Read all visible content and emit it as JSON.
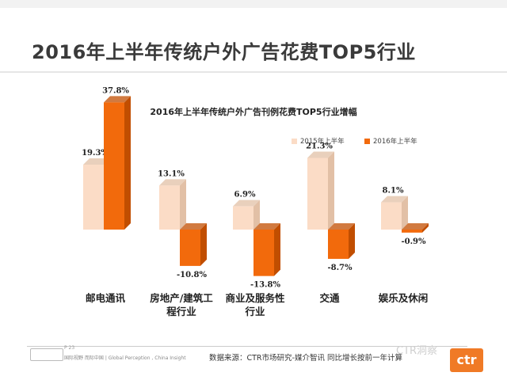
{
  "page": {
    "title": "2016年上半年传统户外广告花费TOP5行业"
  },
  "chart_data": {
    "type": "bar",
    "title": "2016年上半年传统户外广告刊例花费TOP5行业增幅",
    "categories": [
      "邮电通讯",
      "房地产/建筑工程行业",
      "商业及服务性行业",
      "交通",
      "娱乐及休闲"
    ],
    "category_lines": [
      [
        "邮电通讯"
      ],
      [
        "房地产/建筑工",
        "程行业"
      ],
      [
        "商业及服务性",
        "行业"
      ],
      [
        "交通"
      ],
      [
        "娱乐及休闲"
      ]
    ],
    "series": [
      {
        "name": "2015年上半年",
        "values": [
          19.3,
          13.1,
          6.9,
          21.3,
          8.1
        ],
        "labels": [
          "19.3%",
          "13.1%",
          "6.9%",
          "21.3%",
          "8.1%"
        ],
        "color": "#fbdcc6",
        "side": "#e2c0a6"
      },
      {
        "name": "2016年上半年",
        "values": [
          37.8,
          -10.8,
          -13.8,
          -8.7,
          -0.9
        ],
        "labels": [
          "37.8%",
          "-10.8%",
          "-13.8%",
          "-8.7%",
          "-0.9%"
        ],
        "color": "#f26a0c",
        "side": "#c14e00"
      }
    ],
    "legend_position": "top-right",
    "grid": false,
    "ylim": [
      -14,
      38
    ]
  },
  "footer": {
    "page_number": "P 23",
    "tagline": "国际视野  而际中国 | Global Perception , China Insight",
    "source": "数据来源：CTR市场研究-媒介智讯  同比增长按前一年计算",
    "watermark": "CTR洞察",
    "logo": "ctr"
  }
}
